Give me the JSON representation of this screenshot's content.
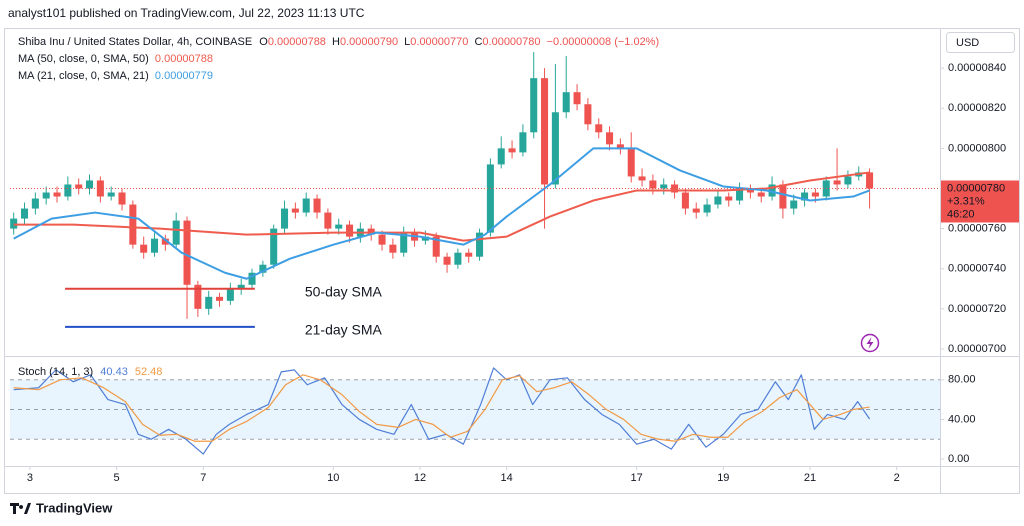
{
  "header": {
    "caption": "analyst101 published on TradingView.com, Jul 22, 2023 11:13 UTC"
  },
  "footer": {
    "logo": "TradingView"
  },
  "chart_data": [
    {
      "type": "candlestick",
      "title": "Shiba Inu / United States Dollar, 4h, COINBASE",
      "legend": {
        "o_label": "O",
        "o": "0.00000788",
        "h_label": "H",
        "h": "0.00000790",
        "l_label": "L",
        "l": "0.00000770",
        "c_label": "C",
        "c": "0.00000780",
        "change": "−0.00000008 (−1.02%)"
      },
      "x": [
        2.625,
        2.875,
        3.125,
        3.375,
        3.625,
        3.875,
        4.125,
        4.375,
        4.625,
        4.875,
        5.125,
        5.375,
        5.625,
        5.875,
        6.125,
        6.375,
        6.625,
        6.875,
        7.125,
        7.375,
        7.625,
        7.875,
        8.125,
        8.375,
        8.625,
        8.875,
        9.125,
        9.375,
        9.625,
        9.875,
        10.125,
        10.375,
        10.625,
        10.875,
        11.125,
        11.375,
        11.625,
        11.875,
        12.125,
        12.375,
        12.625,
        12.875,
        13.125,
        13.375,
        13.625,
        13.875,
        14.125,
        14.375,
        14.625,
        14.875,
        15.125,
        15.375,
        15.625,
        15.875,
        16.125,
        16.375,
        16.625,
        16.875,
        17.125,
        17.375,
        17.625,
        17.875,
        18.125,
        18.375,
        18.625,
        18.875,
        19.125,
        19.375,
        19.625,
        19.875,
        20.125,
        20.375,
        20.625,
        20.875,
        21.125,
        21.375,
        21.625,
        21.875,
        22.125,
        22.375
      ],
      "open": [
        7.6e-06,
        7.65e-06,
        7.7e-06,
        7.75e-06,
        7.78e-06,
        7.76e-06,
        7.82e-06,
        7.8e-06,
        7.84e-06,
        7.76e-06,
        7.78e-06,
        7.72e-06,
        7.52e-06,
        7.48e-06,
        7.55e-06,
        7.52e-06,
        7.64e-06,
        7.32e-06,
        7.2e-06,
        7.26e-06,
        7.24e-06,
        7.3e-06,
        7.32e-06,
        7.38e-06,
        7.42e-06,
        7.6e-06,
        7.7e-06,
        7.68e-06,
        7.75e-06,
        7.68e-06,
        7.6e-06,
        7.62e-06,
        7.56e-06,
        7.6e-06,
        7.57e-06,
        7.52e-06,
        7.48e-06,
        7.58e-06,
        7.54e-06,
        7.56e-06,
        7.46e-06,
        7.42e-06,
        7.48e-06,
        7.46e-06,
        7.58e-06,
        7.92e-06,
        8e-06,
        7.98e-06,
        8.08e-06,
        8.35e-06,
        7.82e-06,
        8.18e-06,
        8.28e-06,
        8.22e-06,
        8.12e-06,
        8.08e-06,
        8.02e-06,
        8e-06,
        7.86e-06,
        7.84e-06,
        7.8e-06,
        7.82e-06,
        7.78e-06,
        7.7e-06,
        7.68e-06,
        7.72e-06,
        7.76e-06,
        7.74e-06,
        7.8e-06,
        7.78e-06,
        7.76e-06,
        7.82e-06,
        7.7e-06,
        7.74e-06,
        7.78e-06,
        7.76e-06,
        7.84e-06,
        7.82e-06,
        7.86e-06,
        7.88e-06
      ],
      "high": [
        7.68e-06,
        7.73e-06,
        7.78e-06,
        7.81e-06,
        7.81e-06,
        7.86e-06,
        7.85e-06,
        7.87e-06,
        7.86e-06,
        7.81e-06,
        7.8e-06,
        7.74e-06,
        7.56e-06,
        7.58e-06,
        7.57e-06,
        7.68e-06,
        7.66e-06,
        7.34e-06,
        7.29e-06,
        7.28e-06,
        7.33e-06,
        7.35e-06,
        7.4e-06,
        7.44e-06,
        7.62e-06,
        7.74e-06,
        7.73e-06,
        7.78e-06,
        7.77e-06,
        7.7e-06,
        7.65e-06,
        7.64e-06,
        7.63e-06,
        7.62e-06,
        7.59e-06,
        7.55e-06,
        7.61e-06,
        7.6e-06,
        7.59e-06,
        7.58e-06,
        7.48e-06,
        7.5e-06,
        7.5e-06,
        7.6e-06,
        7.95e-06,
        8.06e-06,
        8.04e-06,
        8.12e-06,
        8.48e-06,
        8.4e-06,
        8.42e-06,
        8.46e-06,
        8.32e-06,
        8.25e-06,
        8.15e-06,
        8.11e-06,
        8.05e-06,
        8.08e-06,
        7.9e-06,
        7.87e-06,
        7.85e-06,
        7.84e-06,
        7.8e-06,
        7.73e-06,
        7.75e-06,
        7.79e-06,
        7.78e-06,
        7.83e-06,
        7.82e-06,
        7.8e-06,
        7.86e-06,
        7.84e-06,
        7.77e-06,
        7.8e-06,
        7.8e-06,
        7.86e-06,
        8e-06,
        7.89e-06,
        7.91e-06,
        7.9e-06
      ],
      "low": [
        7.57e-06,
        7.62e-06,
        7.67e-06,
        7.72e-06,
        7.73e-06,
        7.74e-06,
        7.77e-06,
        7.77e-06,
        7.73e-06,
        7.74e-06,
        7.69e-06,
        7.5e-06,
        7.45e-06,
        7.46e-06,
        7.49e-06,
        7.5e-06,
        7.15e-06,
        7.16e-06,
        7.17e-06,
        7.21e-06,
        7.22e-06,
        7.27e-06,
        7.3e-06,
        7.36e-06,
        7.4e-06,
        7.57e-06,
        7.65e-06,
        7.66e-06,
        7.65e-06,
        7.57e-06,
        7.57e-06,
        7.53e-06,
        7.53e-06,
        7.54e-06,
        7.49e-06,
        7.45e-06,
        7.46e-06,
        7.51e-06,
        7.52e-06,
        7.43e-06,
        7.38e-06,
        7.4e-06,
        7.43e-06,
        7.44e-06,
        7.56e-06,
        7.9e-06,
        7.95e-06,
        7.96e-06,
        8.05e-06,
        7.6e-06,
        7.8e-06,
        8.15e-06,
        8.19e-06,
        8.09e-06,
        8.05e-06,
        7.99e-06,
        7.97e-06,
        7.83e-06,
        7.81e-06,
        7.77e-06,
        7.77e-06,
        7.75e-06,
        7.67e-06,
        7.65e-06,
        7.66e-06,
        7.7e-06,
        7.71e-06,
        7.72e-06,
        7.75e-06,
        7.73e-06,
        7.74e-06,
        7.65e-06,
        7.67e-06,
        7.71e-06,
        7.73e-06,
        7.74e-06,
        7.79e-06,
        7.8e-06,
        7.84e-06,
        7.7e-06
      ],
      "close": [
        7.65e-06,
        7.7e-06,
        7.75e-06,
        7.78e-06,
        7.76e-06,
        7.82e-06,
        7.8e-06,
        7.84e-06,
        7.76e-06,
        7.78e-06,
        7.72e-06,
        7.52e-06,
        7.48e-06,
        7.55e-06,
        7.52e-06,
        7.64e-06,
        7.32e-06,
        7.2e-06,
        7.26e-06,
        7.24e-06,
        7.3e-06,
        7.32e-06,
        7.38e-06,
        7.42e-06,
        7.6e-06,
        7.7e-06,
        7.68e-06,
        7.75e-06,
        7.68e-06,
        7.6e-06,
        7.62e-06,
        7.56e-06,
        7.6e-06,
        7.57e-06,
        7.52e-06,
        7.48e-06,
        7.58e-06,
        7.54e-06,
        7.56e-06,
        7.46e-06,
        7.42e-06,
        7.48e-06,
        7.46e-06,
        7.58e-06,
        7.92e-06,
        8e-06,
        7.98e-06,
        8.08e-06,
        8.35e-06,
        7.82e-06,
        8.18e-06,
        8.28e-06,
        8.22e-06,
        8.12e-06,
        8.08e-06,
        8.02e-06,
        8e-06,
        7.86e-06,
        7.84e-06,
        7.8e-06,
        7.82e-06,
        7.78e-06,
        7.7e-06,
        7.68e-06,
        7.72e-06,
        7.76e-06,
        7.74e-06,
        7.8e-06,
        7.78e-06,
        7.76e-06,
        7.82e-06,
        7.7e-06,
        7.74e-06,
        7.78e-06,
        7.76e-06,
        7.84e-06,
        7.82e-06,
        7.86e-06,
        7.88e-06,
        7.8e-06
      ],
      "up_color": "#26a69a",
      "down_color": "#ef5350",
      "overlays": [
        {
          "name": "MA (50, close, 0, SMA, 50)",
          "value_label": "0.00000788",
          "color": "#ef5b4c",
          "x": [
            2.625,
            4,
            6,
            8,
            10,
            12,
            13,
            14,
            15,
            16,
            17,
            19,
            20,
            21,
            22.375
          ],
          "values": [
            7.62e-06,
            7.62e-06,
            7.6e-06,
            7.57e-06,
            7.58e-06,
            7.58e-06,
            7.54e-06,
            7.56e-06,
            7.66e-06,
            7.74e-06,
            7.79e-06,
            7.79e-06,
            7.8e-06,
            7.84e-06,
            7.88e-06
          ]
        },
        {
          "name": "MA (21, close, 0, SMA, 21)",
          "value_label": "0.00000779",
          "color": "#3d9ee3",
          "x": [
            2.625,
            3.5,
            4.5,
            5.5,
            6.5,
            7.5,
            8,
            9,
            10,
            11,
            12,
            13,
            13.5,
            14,
            15,
            16,
            17,
            18,
            19,
            20,
            21,
            22,
            22.375
          ],
          "values": [
            7.55e-06,
            7.65e-06,
            7.68e-06,
            7.65e-06,
            7.48e-06,
            7.38e-06,
            7.35e-06,
            7.45e-06,
            7.52e-06,
            7.58e-06,
            7.56e-06,
            7.52e-06,
            7.57e-06,
            7.66e-06,
            7.82e-06,
            8e-06,
            8e-06,
            7.89e-06,
            7.81e-06,
            7.79e-06,
            7.74e-06,
            7.76e-06,
            7.79e-06
          ]
        }
      ],
      "annotations": [
        {
          "text": "50-day SMA",
          "color": "#e0413a",
          "level": 7.3e-06,
          "x": [
            3.81,
            8.19
          ]
        },
        {
          "text": "21-day SMA",
          "color": "#2350c8",
          "level": 7.11e-06,
          "x": [
            3.81,
            8.19
          ]
        }
      ],
      "xlim": [
        2.54,
        24.0
      ],
      "xticks": [
        3,
        5,
        7,
        10,
        12,
        14,
        17,
        19,
        21,
        {
          "value": 23,
          "label": "2"
        }
      ],
      "ylim": [
        6.97e-06,
        8.59e-06
      ],
      "yticks": [
        {
          "value": 8.4e-06,
          "label": "0.00000840"
        },
        {
          "value": 8.2e-06,
          "label": "0.00000820"
        },
        {
          "value": 8e-06,
          "label": "0.00000800"
        },
        {
          "value": 7.6e-06,
          "label": "0.00000760"
        },
        {
          "value": 7.4e-06,
          "label": "0.00000740"
        },
        {
          "value": 7.2e-06,
          "label": "0.00000720"
        },
        {
          "value": 7e-06,
          "label": "0.00000700"
        }
      ],
      "y_axis_label": "USD",
      "last_price": {
        "value": 7.8e-06,
        "label": "0.00000780",
        "change": "+3.31%",
        "countdown": "46:20",
        "color": "#ef5350"
      }
    },
    {
      "type": "line",
      "title": "Stoch (14, 1, 3)",
      "band": [
        20,
        80
      ],
      "midline": 50,
      "band_color": "#2196f3",
      "series": [
        {
          "value_label": "40.43",
          "color": "#4f7fd6",
          "x": [
            2.625,
            3.2,
            3.6,
            4,
            4.4,
            4.8,
            5.2,
            5.5,
            5.8,
            6.2,
            6.6,
            7,
            7.3,
            7.6,
            8,
            8.5,
            8.8,
            9.1,
            9.4,
            9.8,
            10.2,
            10.6,
            11,
            11.4,
            11.8,
            12.2,
            12.6,
            13,
            13.4,
            13.7,
            14,
            14.3,
            14.6,
            15,
            15.4,
            15.8,
            16.2,
            16.6,
            17,
            17.4,
            17.8,
            18.2,
            18.6,
            19,
            19.4,
            19.8,
            20.2,
            20.5,
            20.8,
            21.1,
            21.4,
            21.8,
            22.1,
            22.375
          ],
          "values": [
            70,
            72,
            90,
            78,
            85,
            60,
            55,
            25,
            20,
            30,
            20,
            5,
            25,
            35,
            45,
            55,
            88,
            90,
            75,
            82,
            55,
            40,
            30,
            25,
            55,
            20,
            25,
            15,
            55,
            92,
            80,
            85,
            55,
            80,
            82,
            60,
            45,
            35,
            15,
            20,
            10,
            35,
            12,
            25,
            45,
            50,
            78,
            60,
            85,
            30,
            45,
            40,
            58,
            40.43
          ]
        },
        {
          "value_label": "52.48",
          "color": "#f29a45",
          "x": [
            2.625,
            3.2,
            3.7,
            4.2,
            4.7,
            5.2,
            5.6,
            6,
            6.4,
            6.8,
            7.2,
            7.6,
            8,
            8.5,
            8.9,
            9.3,
            9.7,
            10.2,
            10.6,
            11,
            11.5,
            11.9,
            12.3,
            12.7,
            13.1,
            13.5,
            13.9,
            14.3,
            14.7,
            15.1,
            15.5,
            15.9,
            16.3,
            16.7,
            17.1,
            17.5,
            17.9,
            18.3,
            18.7,
            19.1,
            19.5,
            19.9,
            20.3,
            20.7,
            21,
            21.3,
            21.7,
            22,
            22.375
          ],
          "values": [
            72,
            70,
            80,
            82,
            72,
            58,
            35,
            24,
            25,
            18,
            18,
            30,
            38,
            52,
            75,
            85,
            80,
            65,
            48,
            35,
            32,
            40,
            35,
            22,
            28,
            50,
            80,
            84,
            68,
            72,
            78,
            65,
            50,
            40,
            25,
            20,
            18,
            25,
            22,
            22,
            38,
            48,
            62,
            70,
            55,
            40,
            45,
            50,
            52.48
          ]
        }
      ],
      "xlim": [
        2.54,
        24.0
      ],
      "ylim": [
        -6,
        102
      ],
      "yticks": [
        {
          "value": 80,
          "label": "80.00"
        },
        {
          "value": 40,
          "label": "40.00"
        },
        {
          "value": 0,
          "label": "0.00"
        }
      ]
    }
  ]
}
